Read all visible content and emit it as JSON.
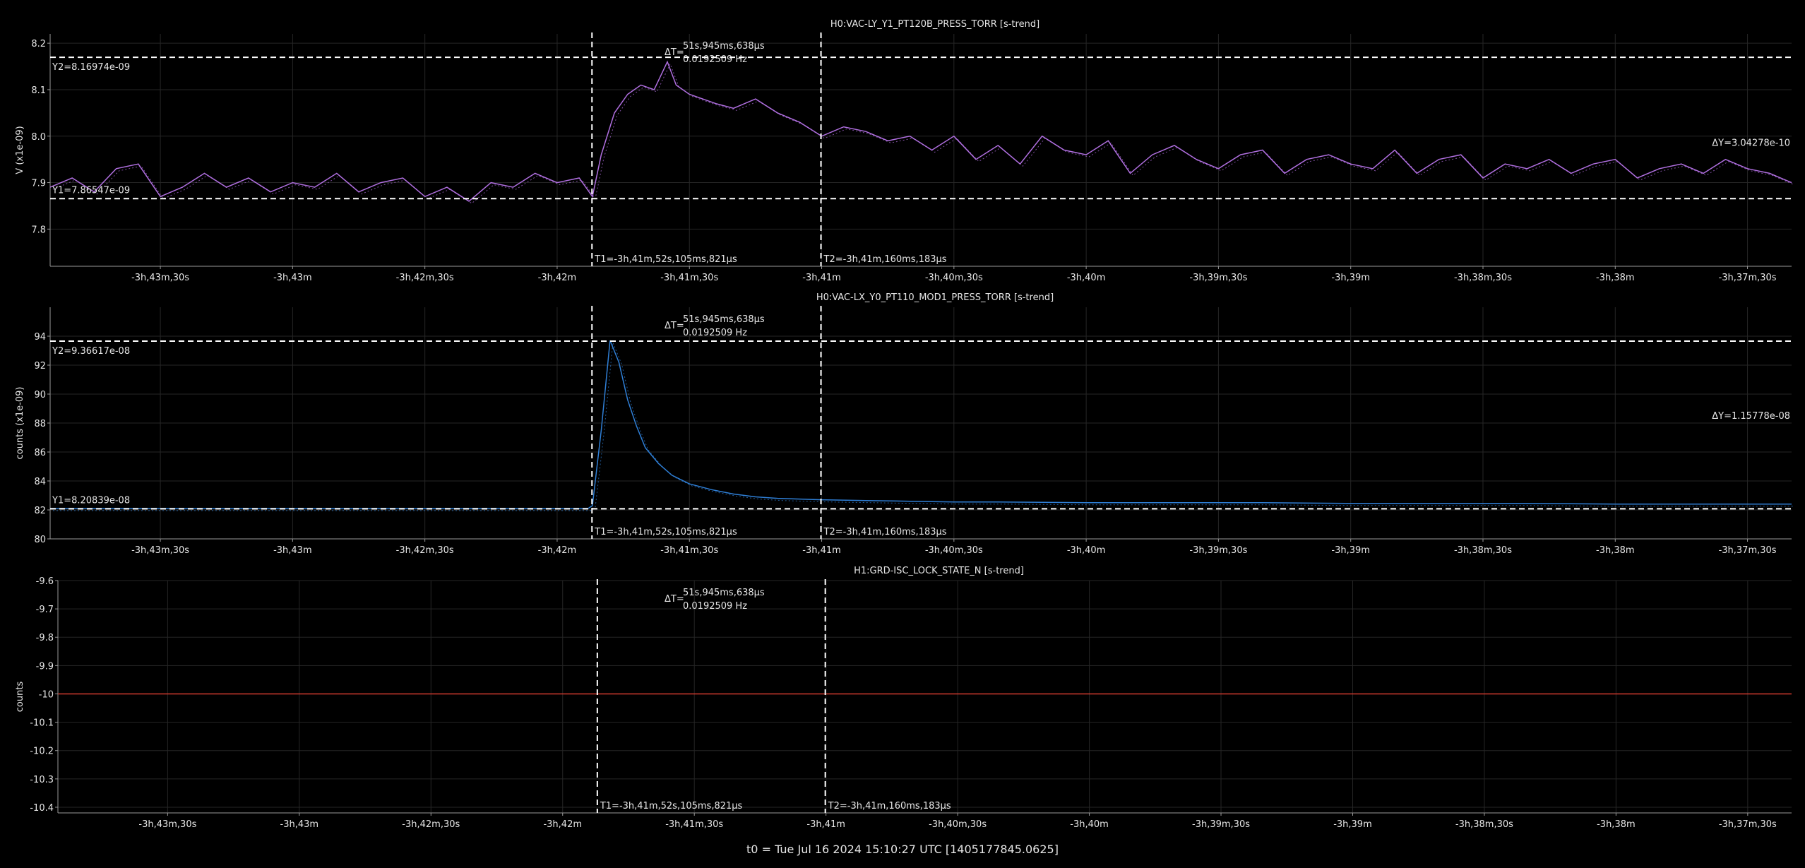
{
  "footer": "t0 = Tue Jul 16 2024 15:10:27 UTC [1405177845.0625]",
  "x_ticks": [
    "-3h,43m,30s",
    "-3h,43m",
    "-3h,42m,30s",
    "-3h,42m",
    "-3h,41m,30s",
    "-3h,41m",
    "-3h,40m,30s",
    "-3h,40m",
    "-3h,39m,30s",
    "-3h,39m",
    "-3h,38m,30s",
    "-3h,38m",
    "-3h,37m,30s"
  ],
  "x_tick_seconds": [
    -13410,
    -13380,
    -13350,
    -13320,
    -13290,
    -13260,
    -13230,
    -13200,
    -13170,
    -13140,
    -13110,
    -13080,
    -13050
  ],
  "x_range": [
    -13435,
    -13040
  ],
  "cursors": {
    "t1_label": "T1=-3h,41m,52s,105ms,821µs",
    "t2_label": "T2=-3h,41m,160ms,183µs",
    "t1_seconds": -13312.1,
    "t2_seconds": -13260.16,
    "dt_symbol": "ΔT=",
    "dt_value": "51s,945ms,638µs",
    "dt_freq": "0.0192509 Hz"
  },
  "colors": {
    "grid": "#262626",
    "cursor": "#ffffff",
    "series1": "#b06fe0",
    "series2": "#2f7fd6",
    "series3": "#d03a2e"
  },
  "chart_data": [
    {
      "type": "line",
      "title": "H0:VAC-LY_Y1_PT120B_PRESS_TORR [s-trend]",
      "ylabel": "V (x1e-09)",
      "ylim": [
        7.72,
        8.22
      ],
      "y_ticks": [
        "7.8",
        "7.9",
        "8.0",
        "8.1",
        "8.2"
      ],
      "y_tick_values": [
        7.8,
        7.9,
        8.0,
        8.1,
        8.2
      ],
      "y_cursor1": "Y1=7.86547e-09",
      "y_cursor2": "Y2=8.16974e-09",
      "y1": 7.8655,
      "y2": 8.1697,
      "dy": "ΔY=3.04278e-10",
      "series": [
        {
          "x": [
            -13435,
            -13430,
            -13425,
            -13420,
            -13415,
            -13410,
            -13405,
            -13400,
            -13395,
            -13390,
            -13385,
            -13380,
            -13375,
            -13370,
            -13365,
            -13360,
            -13355,
            -13350,
            -13345,
            -13340,
            -13335,
            -13330,
            -13325,
            -13320,
            -13315,
            -13312,
            -13310,
            -13307,
            -13304,
            -13301,
            -13298,
            -13295,
            -13293,
            -13290,
            -13287,
            -13284,
            -13280,
            -13275,
            -13270,
            -13265,
            -13260,
            -13255,
            -13250,
            -13245,
            -13240,
            -13235,
            -13230,
            -13225,
            -13220,
            -13215,
            -13210,
            -13205,
            -13200,
            -13195,
            -13190,
            -13185,
            -13180,
            -13175,
            -13170,
            -13165,
            -13160,
            -13155,
            -13150,
            -13145,
            -13140,
            -13135,
            -13130,
            -13125,
            -13120,
            -13115,
            -13110,
            -13105,
            -13100,
            -13095,
            -13090,
            -13085,
            -13080,
            -13075,
            -13070,
            -13065,
            -13060,
            -13055,
            -13050,
            -13045,
            -13040
          ],
          "y": [
            7.89,
            7.91,
            7.88,
            7.93,
            7.94,
            7.87,
            7.89,
            7.92,
            7.89,
            7.91,
            7.88,
            7.9,
            7.89,
            7.92,
            7.88,
            7.9,
            7.91,
            7.87,
            7.89,
            7.86,
            7.9,
            7.89,
            7.92,
            7.9,
            7.91,
            7.87,
            7.96,
            8.05,
            8.09,
            8.11,
            8.1,
            8.16,
            8.11,
            8.09,
            8.08,
            8.07,
            8.06,
            8.08,
            8.05,
            8.03,
            8.0,
            8.02,
            8.01,
            7.99,
            8.0,
            7.97,
            8.0,
            7.95,
            7.98,
            7.94,
            8.0,
            7.97,
            7.96,
            7.99,
            7.92,
            7.96,
            7.98,
            7.95,
            7.93,
            7.96,
            7.97,
            7.92,
            7.95,
            7.96,
            7.94,
            7.93,
            7.97,
            7.92,
            7.95,
            7.96,
            7.91,
            7.94,
            7.93,
            7.95,
            7.92,
            7.94,
            7.95,
            7.91,
            7.93,
            7.94,
            7.92,
            7.95,
            7.93,
            7.92,
            7.9
          ]
        }
      ]
    },
    {
      "type": "line",
      "title": "H0:VAC-LX_Y0_PT110_MOD1_PRESS_TORR [s-trend]",
      "ylabel": "counts (x1e-09)",
      "ylim": [
        80,
        96
      ],
      "y_ticks": [
        "80",
        "82",
        "84",
        "86",
        "88",
        "90",
        "92",
        "94"
      ],
      "y_tick_values": [
        80,
        82,
        84,
        86,
        88,
        90,
        92,
        94
      ],
      "y_cursor1": "Y1=8.20839e-08",
      "y_cursor2": "Y2=9.36617e-08",
      "y1": 82.08,
      "y2": 93.66,
      "dy": "ΔY=1.15778e-08",
      "series": [
        {
          "x": [
            -13435,
            -13420,
            -13400,
            -13380,
            -13360,
            -13340,
            -13320,
            -13313,
            -13312,
            -13310,
            -13308,
            -13306,
            -13304,
            -13302,
            -13300,
            -13297,
            -13294,
            -13290,
            -13285,
            -13280,
            -13275,
            -13270,
            -13265,
            -13260,
            -13250,
            -13240,
            -13230,
            -13220,
            -13200,
            -13180,
            -13160,
            -13140,
            -13120,
            -13100,
            -13080,
            -13060,
            -13040
          ],
          "y": [
            82.1,
            82.1,
            82.1,
            82.1,
            82.1,
            82.1,
            82.1,
            82.1,
            82.3,
            87.5,
            93.7,
            92.2,
            89.6,
            87.8,
            86.3,
            85.2,
            84.4,
            83.8,
            83.4,
            83.1,
            82.9,
            82.8,
            82.75,
            82.7,
            82.65,
            82.6,
            82.55,
            82.55,
            82.5,
            82.5,
            82.5,
            82.45,
            82.45,
            82.45,
            82.4,
            82.4,
            82.4
          ]
        }
      ]
    },
    {
      "type": "line",
      "title": "H1:GRD-ISC_LOCK_STATE_N [s-trend]",
      "ylabel": "counts",
      "ylim": [
        -10.42,
        -9.6
      ],
      "y_ticks": [
        "-9.6",
        "-9.7",
        "-9.8",
        "-9.9",
        "-10",
        "-10.1",
        "-10.2",
        "-10.3",
        "-10.4"
      ],
      "y_tick_values": [
        -9.6,
        -9.7,
        -9.8,
        -9.9,
        -10,
        -10.1,
        -10.2,
        -10.3,
        -10.4
      ],
      "series": [
        {
          "x": [
            -13435,
            -13040
          ],
          "y": [
            -10,
            -10
          ]
        }
      ]
    }
  ]
}
